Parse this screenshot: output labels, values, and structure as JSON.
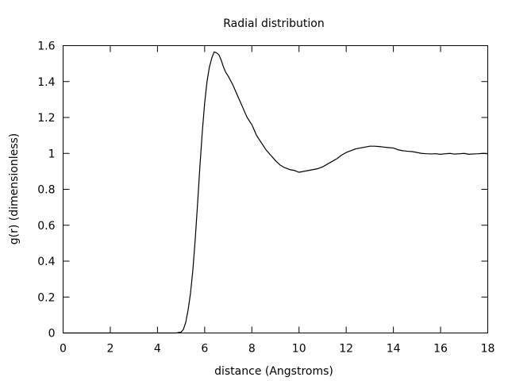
{
  "chart_data": {
    "type": "line",
    "title": "Radial distribution",
    "xlabel": "distance (Angstroms)",
    "ylabel": "g(r) (dimensionless)",
    "xlim": [
      0,
      18
    ],
    "ylim": [
      0,
      1.6
    ],
    "xticks": [
      0,
      2,
      4,
      6,
      8,
      10,
      12,
      14,
      16,
      18
    ],
    "yticks": [
      0,
      0.2,
      0.4,
      0.6,
      0.8,
      1,
      1.2,
      1.4,
      1.6
    ],
    "grid": false,
    "legend": "none",
    "series": [
      {
        "x": [
          0,
          4.8,
          5.0,
          5.1,
          5.2,
          5.3,
          5.4,
          5.5,
          5.6,
          5.7,
          5.8,
          5.9,
          6.0,
          6.1,
          6.2,
          6.3,
          6.4,
          6.5,
          6.6,
          6.7,
          6.8,
          6.9,
          7.0,
          7.2,
          7.4,
          7.6,
          7.8,
          8.0,
          8.2,
          8.4,
          8.6,
          8.8,
          9.0,
          9.2,
          9.4,
          9.6,
          9.8,
          10.0,
          10.2,
          10.4,
          10.6,
          10.8,
          11.0,
          11.2,
          11.4,
          11.6,
          11.8,
          12.0,
          12.2,
          12.4,
          12.6,
          12.8,
          13.0,
          13.2,
          13.4,
          13.6,
          13.8,
          14.0,
          14.2,
          14.4,
          14.6,
          14.8,
          15.0,
          15.2,
          15.4,
          15.6,
          15.8,
          16.0,
          16.2,
          16.4,
          16.6,
          16.8,
          17.0,
          17.2,
          17.4,
          17.6,
          17.8,
          18.0
        ],
        "y": [
          0,
          0,
          0.005,
          0.02,
          0.06,
          0.13,
          0.22,
          0.35,
          0.52,
          0.72,
          0.93,
          1.12,
          1.28,
          1.4,
          1.48,
          1.53,
          1.565,
          1.56,
          1.55,
          1.52,
          1.48,
          1.45,
          1.43,
          1.38,
          1.32,
          1.26,
          1.2,
          1.16,
          1.1,
          1.06,
          1.02,
          0.99,
          0.96,
          0.935,
          0.92,
          0.91,
          0.905,
          0.895,
          0.9,
          0.905,
          0.91,
          0.915,
          0.925,
          0.94,
          0.955,
          0.97,
          0.99,
          1.005,
          1.015,
          1.025,
          1.03,
          1.035,
          1.04,
          1.04,
          1.038,
          1.035,
          1.032,
          1.03,
          1.02,
          1.015,
          1.012,
          1.01,
          1.005,
          1.0,
          0.998,
          0.997,
          0.998,
          0.995,
          0.998,
          1.0,
          0.996,
          0.998,
          1.0,
          0.995,
          0.997,
          0.998,
          1.0,
          0.998
        ]
      }
    ]
  }
}
